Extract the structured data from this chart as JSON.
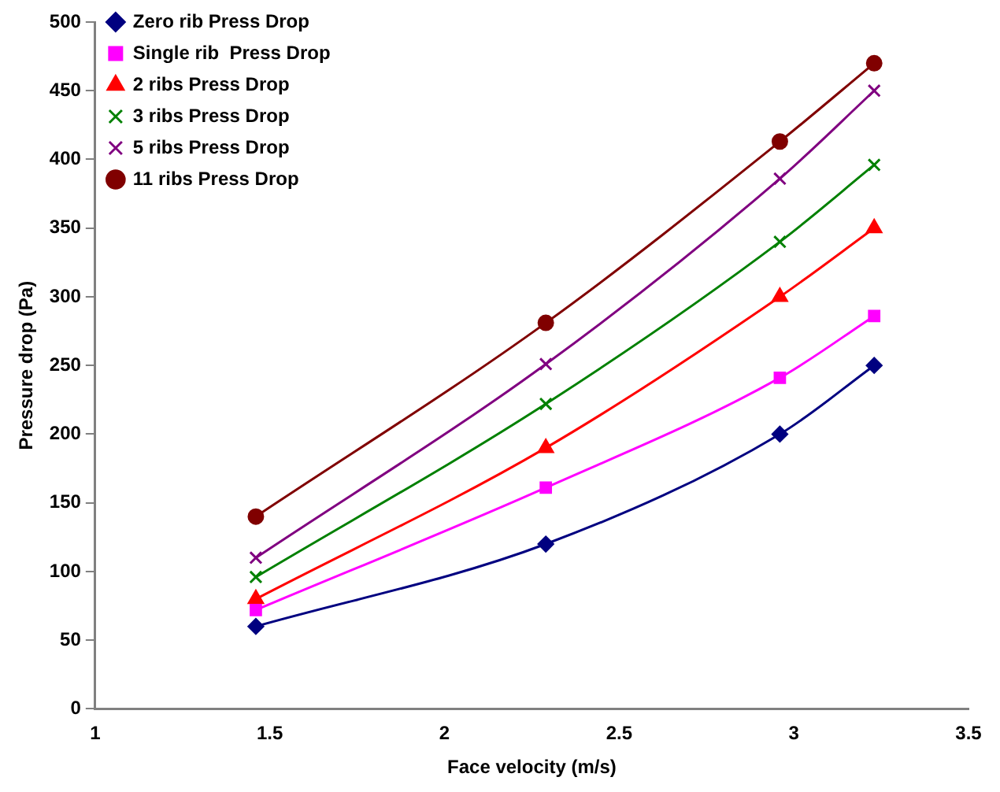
{
  "chart_data": {
    "type": "line",
    "xlabel": "Face velocity (m/s)",
    "ylabel": "Pressure drop (Pa)",
    "x": [
      1.46,
      2.29,
      2.96,
      3.23
    ],
    "xlim": [
      1,
      3.5
    ],
    "xticks": [
      1,
      1.5,
      2,
      2.5,
      3,
      3.5
    ],
    "ylim": [
      0,
      500
    ],
    "yticks": [
      0,
      50,
      100,
      150,
      200,
      250,
      300,
      350,
      400,
      450,
      500
    ],
    "grid": false,
    "legend": "top left",
    "series": [
      {
        "name": "Zero rib Press Drop",
        "color": "#000080",
        "marker": "diamond",
        "values": [
          60,
          120,
          200,
          250
        ]
      },
      {
        "name": "Single rib  Press Drop",
        "color": "#ff00ff",
        "marker": "square",
        "values": [
          72,
          161,
          241,
          286
        ]
      },
      {
        "name": "2 ribs Press Drop",
        "color": "#ff0000",
        "marker": "triangle",
        "values": [
          80,
          190,
          300,
          350
        ]
      },
      {
        "name": "3 ribs Press Drop",
        "color": "#008000",
        "marker": "cross",
        "values": [
          96,
          222,
          340,
          396
        ]
      },
      {
        "name": "5 ribs Press Drop",
        "color": "#800080",
        "marker": "cross",
        "values": [
          110,
          251,
          386,
          450
        ]
      },
      {
        "name": "11 ribs Press Drop",
        "color": "#800000",
        "marker": "circle",
        "values": [
          140,
          281,
          413,
          470
        ]
      }
    ]
  }
}
